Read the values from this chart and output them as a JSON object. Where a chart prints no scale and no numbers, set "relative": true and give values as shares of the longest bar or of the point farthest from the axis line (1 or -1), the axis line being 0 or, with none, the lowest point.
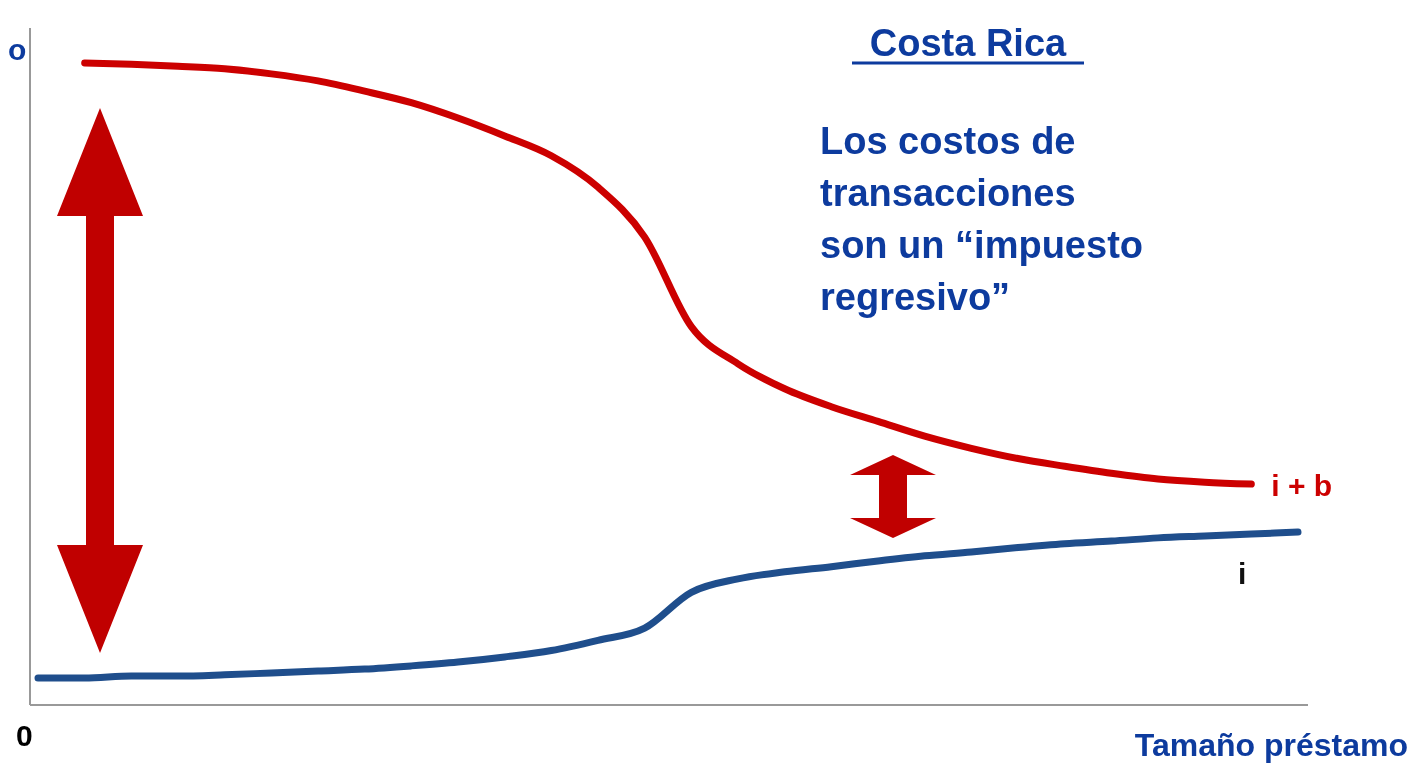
{
  "chart_data": {
    "type": "line",
    "relative": true,
    "title": "Costa Rica",
    "ylabel": "o",
    "xlabel": "Tamaño préstamo",
    "annotations": [
      "Los costos de transacciones son un “impuesto regresivo”",
      "0"
    ],
    "categories": [
      null,
      null,
      null,
      null,
      null,
      null,
      null,
      null,
      null,
      null,
      null,
      null,
      null,
      null,
      null,
      null,
      null,
      null,
      null,
      null,
      null,
      null,
      null,
      null,
      null,
      null,
      null,
      null
    ],
    "series": [
      {
        "name": "i + b",
        "color": "#cc0000",
        "values": [
          null,
          1.0,
          0.998,
          0.995,
          0.991,
          0.983,
          0.972,
          0.956,
          0.938,
          0.914,
          0.886,
          0.855,
          0.806,
          0.728,
          0.588,
          0.53,
          0.491,
          0.463,
          0.44,
          0.417,
          0.398,
          0.382,
          0.37,
          0.359,
          0.35,
          0.345,
          0.342,
          null
        ]
      },
      {
        "name": "i",
        "color": "#1f4e8c",
        "values": [
          0.039,
          0.039,
          0.042,
          0.042,
          0.044,
          0.047,
          0.05,
          0.053,
          0.058,
          0.064,
          0.072,
          0.082,
          0.098,
          0.117,
          0.173,
          0.194,
          0.205,
          0.213,
          0.222,
          0.23,
          0.236,
          0.243,
          0.249,
          0.253,
          0.258,
          0.261,
          0.264,
          0.267
        ]
      }
    ]
  }
}
